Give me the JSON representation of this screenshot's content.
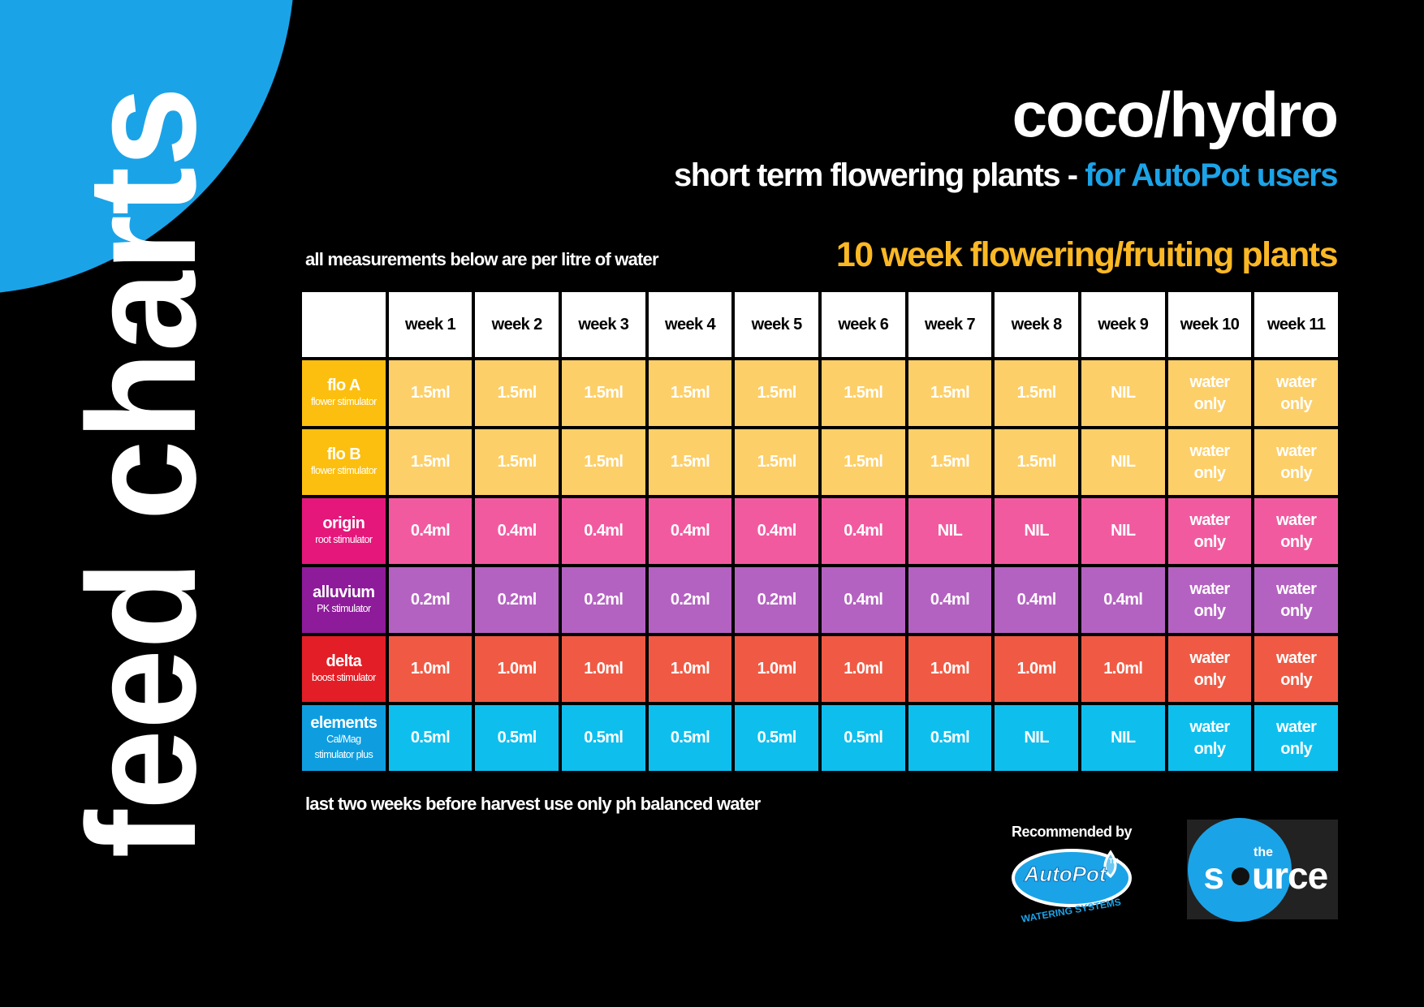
{
  "side_title": "feed charts",
  "header": {
    "title": "coco/hydro",
    "subtitle": "short term flowering plants - ",
    "subtitle_highlight": "for AutoPot users"
  },
  "note": "all measurements below are per litre of water",
  "table_title": "10 week flowering/fruiting plants",
  "table": {
    "columns": [
      "week 1",
      "week 2",
      "week 3",
      "week 4",
      "week 5",
      "week 6",
      "week 7",
      "week 8",
      "week 9",
      "week 10",
      "week 11"
    ],
    "rows": [
      {
        "name": "flo A",
        "description": "flower stimulator",
        "label_color": "#fcbf0f",
        "cell_color": "#fdcf68",
        "cells": [
          "1.5ml",
          "1.5ml",
          "1.5ml",
          "1.5ml",
          "1.5ml",
          "1.5ml",
          "1.5ml",
          "1.5ml",
          "NIL",
          "water only",
          "water only"
        ]
      },
      {
        "name": "flo B",
        "description": "flower stimulator",
        "label_color": "#fcbf0f",
        "cell_color": "#fdcf68",
        "cells": [
          "1.5ml",
          "1.5ml",
          "1.5ml",
          "1.5ml",
          "1.5ml",
          "1.5ml",
          "1.5ml",
          "1.5ml",
          "NIL",
          "water only",
          "water only"
        ]
      },
      {
        "name": "origin",
        "description": "root stimulator",
        "label_color": "#e5177b",
        "cell_color": "#f25aa0",
        "cells": [
          "0.4ml",
          "0.4ml",
          "0.4ml",
          "0.4ml",
          "0.4ml",
          "0.4ml",
          "NIL",
          "NIL",
          "NIL",
          "water only",
          "water only"
        ]
      },
      {
        "name": "alluvium",
        "description": "PK stimulator",
        "label_color": "#8e1b9a",
        "cell_color": "#b462c1",
        "cells": [
          "0.2ml",
          "0.2ml",
          "0.2ml",
          "0.2ml",
          "0.2ml",
          "0.4ml",
          "0.4ml",
          "0.4ml",
          "0.4ml",
          "water only",
          "water only"
        ]
      },
      {
        "name": "delta",
        "description": "boost stimulator",
        "label_color": "#e31e26",
        "cell_color": "#f05a44",
        "cells": [
          "1.0ml",
          "1.0ml",
          "1.0ml",
          "1.0ml",
          "1.0ml",
          "1.0ml",
          "1.0ml",
          "1.0ml",
          "1.0ml",
          "water only",
          "water only"
        ]
      },
      {
        "name": "elements",
        "description": "Cal/Mag stimulator plus",
        "label_color": "#0e9ee0",
        "cell_color": "#0ebfee",
        "cells": [
          "0.5ml",
          "0.5ml",
          "0.5ml",
          "0.5ml",
          "0.5ml",
          "0.5ml",
          "0.5ml",
          "NIL",
          "NIL",
          "water only",
          "water only"
        ]
      }
    ]
  },
  "footer_note": "last two weeks before harvest use only ph balanced water",
  "recommended": "Recommended by",
  "autopot_logo": {
    "name": "AutoPot",
    "tagline": "WATERING SYSTEMS",
    "tm": "TM"
  },
  "source_logo": {
    "small": "the",
    "start": "s",
    "end": "urce"
  }
}
